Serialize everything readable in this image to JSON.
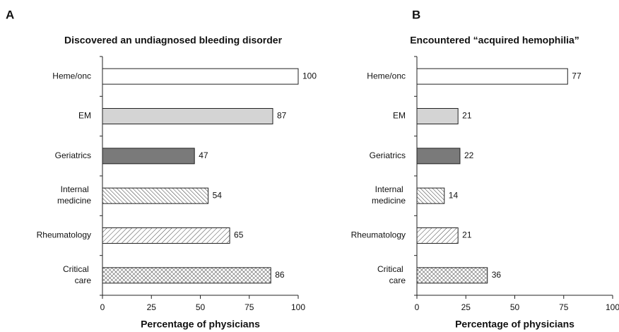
{
  "chart_data": [
    {
      "type": "barh",
      "panel": "A",
      "title": "Discovered an undiagnosed bleeding disorder",
      "categories": [
        "Heme/onc",
        "EM",
        "Geriatrics",
        "Internal medicine",
        "Rheumatology",
        "Critical care"
      ],
      "values": [
        100,
        87,
        47,
        54,
        65,
        86
      ],
      "fills": [
        "white",
        "#d4d4d4",
        "#7a7a7a",
        "hatch-dense",
        "hatch-sparse",
        "crosshatch"
      ],
      "xlim": [
        0,
        100
      ],
      "xticks": [
        0,
        25,
        50,
        75,
        100
      ],
      "xlabel": "Percentage of physicians"
    },
    {
      "type": "barh",
      "panel": "B",
      "title": "Encountered “acquired hemophilia”",
      "categories": [
        "Heme/onc",
        "EM",
        "Geriatrics",
        "Internal medicine",
        "Rheumatology",
        "Critical care"
      ],
      "values": [
        77,
        21,
        22,
        14,
        21,
        36
      ],
      "fills": [
        "white",
        "#d4d4d4",
        "#7a7a7a",
        "hatch-dense",
        "hatch-sparse",
        "crosshatch"
      ],
      "xlim": [
        0,
        100
      ],
      "xticks": [
        0,
        25,
        50,
        75,
        100
      ],
      "xlabel": "Percentage of physicians"
    }
  ]
}
